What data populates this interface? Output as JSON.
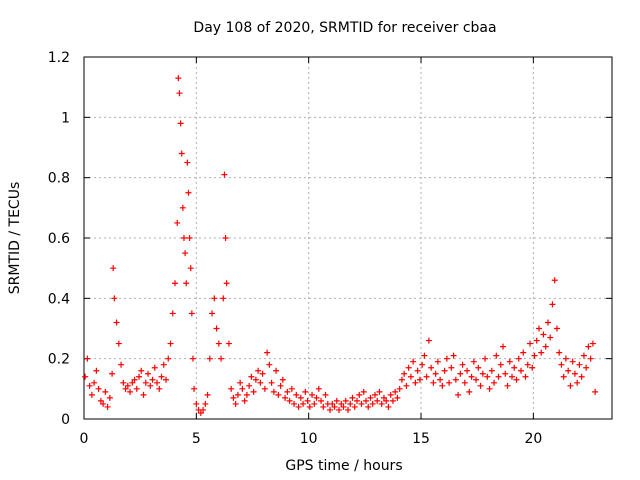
{
  "chart_data": {
    "type": "scatter",
    "title": "Day 108 of 2020, SRMTID for receiver cbaa",
    "xlabel": "GPS time / hours",
    "ylabel": "SRMTID / TECUs",
    "xlim": [
      0,
      23.5
    ],
    "ylim": [
      0,
      1.2
    ],
    "xticks": [
      0,
      5,
      10,
      15,
      20
    ],
    "xtick_labels": [
      "0",
      "5",
      "10",
      "15",
      "20"
    ],
    "yticks": [
      0,
      0.2,
      0.4,
      0.6,
      0.8,
      1.0,
      1.2
    ],
    "ytick_labels": [
      "0",
      "0.2",
      "0.4",
      "0.6",
      "0.8",
      "1",
      "1.2"
    ],
    "grid": true,
    "marker": "plus",
    "color": "#ff0000",
    "series": [
      {
        "name": "SRMTID",
        "points": [
          [
            0.05,
            0.14
          ],
          [
            0.15,
            0.2
          ],
          [
            0.25,
            0.11
          ],
          [
            0.35,
            0.08
          ],
          [
            0.45,
            0.12
          ],
          [
            0.55,
            0.16
          ],
          [
            0.65,
            0.1
          ],
          [
            0.75,
            0.06
          ],
          [
            0.85,
            0.05
          ],
          [
            0.95,
            0.09
          ],
          [
            1.05,
            0.04
          ],
          [
            1.15,
            0.07
          ],
          [
            1.25,
            0.15
          ],
          [
            1.3,
            0.5
          ],
          [
            1.35,
            0.4
          ],
          [
            1.45,
            0.32
          ],
          [
            1.55,
            0.25
          ],
          [
            1.65,
            0.18
          ],
          [
            1.75,
            0.12
          ],
          [
            1.85,
            0.1
          ],
          [
            1.95,
            0.11
          ],
          [
            2.05,
            0.09
          ],
          [
            2.15,
            0.12
          ],
          [
            2.25,
            0.13
          ],
          [
            2.35,
            0.1
          ],
          [
            2.45,
            0.14
          ],
          [
            2.55,
            0.16
          ],
          [
            2.65,
            0.08
          ],
          [
            2.75,
            0.12
          ],
          [
            2.85,
            0.15
          ],
          [
            2.95,
            0.11
          ],
          [
            3.05,
            0.13
          ],
          [
            3.15,
            0.17
          ],
          [
            3.25,
            0.12
          ],
          [
            3.35,
            0.1
          ],
          [
            3.45,
            0.14
          ],
          [
            3.55,
            0.18
          ],
          [
            3.65,
            0.13
          ],
          [
            3.75,
            0.2
          ],
          [
            3.85,
            0.25
          ],
          [
            3.95,
            0.35
          ],
          [
            4.05,
            0.45
          ],
          [
            4.15,
            0.65
          ],
          [
            4.2,
            1.13
          ],
          [
            4.25,
            1.08
          ],
          [
            4.3,
            0.98
          ],
          [
            4.35,
            0.88
          ],
          [
            4.4,
            0.7
          ],
          [
            4.45,
            0.6
          ],
          [
            4.5,
            0.55
          ],
          [
            4.55,
            0.45
          ],
          [
            4.6,
            0.85
          ],
          [
            4.65,
            0.75
          ],
          [
            4.7,
            0.6
          ],
          [
            4.75,
            0.5
          ],
          [
            4.8,
            0.35
          ],
          [
            4.85,
            0.2
          ],
          [
            4.9,
            0.1
          ],
          [
            5.0,
            0.05
          ],
          [
            5.1,
            0.03
          ],
          [
            5.2,
            0.02
          ],
          [
            5.3,
            0.03
          ],
          [
            5.4,
            0.05
          ],
          [
            5.5,
            0.08
          ],
          [
            5.6,
            0.2
          ],
          [
            5.7,
            0.35
          ],
          [
            5.8,
            0.4
          ],
          [
            5.9,
            0.3
          ],
          [
            6.0,
            0.25
          ],
          [
            6.1,
            0.2
          ],
          [
            6.2,
            0.4
          ],
          [
            6.25,
            0.81
          ],
          [
            6.3,
            0.6
          ],
          [
            6.35,
            0.45
          ],
          [
            6.45,
            0.25
          ],
          [
            6.55,
            0.1
          ],
          [
            6.65,
            0.07
          ],
          [
            6.75,
            0.05
          ],
          [
            6.85,
            0.08
          ],
          [
            6.95,
            0.12
          ],
          [
            7.05,
            0.1
          ],
          [
            7.15,
            0.06
          ],
          [
            7.25,
            0.08
          ],
          [
            7.35,
            0.11
          ],
          [
            7.45,
            0.14
          ],
          [
            7.55,
            0.09
          ],
          [
            7.65,
            0.13
          ],
          [
            7.75,
            0.16
          ],
          [
            7.85,
            0.12
          ],
          [
            7.95,
            0.15
          ],
          [
            8.05,
            0.1
          ],
          [
            8.15,
            0.22
          ],
          [
            8.25,
            0.18
          ],
          [
            8.35,
            0.12
          ],
          [
            8.45,
            0.09
          ],
          [
            8.55,
            0.16
          ],
          [
            8.65,
            0.08
          ],
          [
            8.75,
            0.11
          ],
          [
            8.85,
            0.13
          ],
          [
            8.95,
            0.07
          ],
          [
            9.05,
            0.09
          ],
          [
            9.15,
            0.06
          ],
          [
            9.25,
            0.1
          ],
          [
            9.35,
            0.05
          ],
          [
            9.45,
            0.08
          ],
          [
            9.55,
            0.04
          ],
          [
            9.65,
            0.07
          ],
          [
            9.75,
            0.05
          ],
          [
            9.85,
            0.09
          ],
          [
            9.95,
            0.06
          ],
          [
            10.05,
            0.04
          ],
          [
            10.15,
            0.08
          ],
          [
            10.25,
            0.05
          ],
          [
            10.35,
            0.07
          ],
          [
            10.45,
            0.1
          ],
          [
            10.55,
            0.06
          ],
          [
            10.65,
            0.04
          ],
          [
            10.75,
            0.08
          ],
          [
            10.85,
            0.05
          ],
          [
            10.95,
            0.03
          ],
          [
            11.05,
            0.05
          ],
          [
            11.15,
            0.04
          ],
          [
            11.25,
            0.06
          ],
          [
            11.35,
            0.03
          ],
          [
            11.45,
            0.05
          ],
          [
            11.55,
            0.04
          ],
          [
            11.65,
            0.06
          ],
          [
            11.75,
            0.03
          ],
          [
            11.85,
            0.05
          ],
          [
            11.95,
            0.07
          ],
          [
            12.05,
            0.04
          ],
          [
            12.15,
            0.06
          ],
          [
            12.25,
            0.08
          ],
          [
            12.35,
            0.05
          ],
          [
            12.45,
            0.09
          ],
          [
            12.55,
            0.06
          ],
          [
            12.65,
            0.04
          ],
          [
            12.75,
            0.07
          ],
          [
            12.85,
            0.05
          ],
          [
            12.95,
            0.08
          ],
          [
            13.05,
            0.06
          ],
          [
            13.15,
            0.09
          ],
          [
            13.25,
            0.05
          ],
          [
            13.35,
            0.07
          ],
          [
            13.45,
            0.06
          ],
          [
            13.55,
            0.04
          ],
          [
            13.65,
            0.08
          ],
          [
            13.75,
            0.06
          ],
          [
            13.85,
            0.09
          ],
          [
            13.95,
            0.07
          ],
          [
            14.05,
            0.1
          ],
          [
            14.15,
            0.13
          ],
          [
            14.25,
            0.15
          ],
          [
            14.35,
            0.11
          ],
          [
            14.45,
            0.17
          ],
          [
            14.55,
            0.14
          ],
          [
            14.65,
            0.19
          ],
          [
            14.75,
            0.12
          ],
          [
            14.85,
            0.16
          ],
          [
            14.95,
            0.13
          ],
          [
            15.05,
            0.18
          ],
          [
            15.15,
            0.21
          ],
          [
            15.25,
            0.14
          ],
          [
            15.35,
            0.26
          ],
          [
            15.45,
            0.17
          ],
          [
            15.55,
            0.12
          ],
          [
            15.65,
            0.15
          ],
          [
            15.75,
            0.19
          ],
          [
            15.85,
            0.13
          ],
          [
            15.95,
            0.11
          ],
          [
            16.05,
            0.16
          ],
          [
            16.15,
            0.2
          ],
          [
            16.25,
            0.12
          ],
          [
            16.35,
            0.17
          ],
          [
            16.45,
            0.21
          ],
          [
            16.55,
            0.13
          ],
          [
            16.65,
            0.08
          ],
          [
            16.75,
            0.15
          ],
          [
            16.85,
            0.18
          ],
          [
            16.95,
            0.12
          ],
          [
            17.05,
            0.16
          ],
          [
            17.15,
            0.09
          ],
          [
            17.25,
            0.14
          ],
          [
            17.35,
            0.19
          ],
          [
            17.45,
            0.13
          ],
          [
            17.55,
            0.17
          ],
          [
            17.65,
            0.11
          ],
          [
            17.75,
            0.15
          ],
          [
            17.85,
            0.2
          ],
          [
            17.95,
            0.14
          ],
          [
            18.05,
            0.1
          ],
          [
            18.15,
            0.16
          ],
          [
            18.25,
            0.12
          ],
          [
            18.35,
            0.21
          ],
          [
            18.45,
            0.14
          ],
          [
            18.55,
            0.18
          ],
          [
            18.65,
            0.24
          ],
          [
            18.75,
            0.15
          ],
          [
            18.85,
            0.11
          ],
          [
            18.95,
            0.19
          ],
          [
            19.05,
            0.14
          ],
          [
            19.15,
            0.17
          ],
          [
            19.25,
            0.13
          ],
          [
            19.35,
            0.2
          ],
          [
            19.45,
            0.16
          ],
          [
            19.55,
            0.22
          ],
          [
            19.65,
            0.14
          ],
          [
            19.75,
            0.18
          ],
          [
            19.85,
            0.25
          ],
          [
            19.95,
            0.17
          ],
          [
            20.05,
            0.21
          ],
          [
            20.15,
            0.26
          ],
          [
            20.25,
            0.3
          ],
          [
            20.35,
            0.22
          ],
          [
            20.45,
            0.28
          ],
          [
            20.55,
            0.24
          ],
          [
            20.65,
            0.32
          ],
          [
            20.75,
            0.27
          ],
          [
            20.85,
            0.38
          ],
          [
            20.95,
            0.46
          ],
          [
            21.05,
            0.3
          ],
          [
            21.15,
            0.22
          ],
          [
            21.25,
            0.18
          ],
          [
            21.35,
            0.14
          ],
          [
            21.45,
            0.2
          ],
          [
            21.55,
            0.16
          ],
          [
            21.65,
            0.11
          ],
          [
            21.75,
            0.19
          ],
          [
            21.85,
            0.15
          ],
          [
            21.95,
            0.12
          ],
          [
            22.05,
            0.18
          ],
          [
            22.15,
            0.14
          ],
          [
            22.25,
            0.21
          ],
          [
            22.35,
            0.17
          ],
          [
            22.45,
            0.24
          ],
          [
            22.55,
            0.2
          ],
          [
            22.65,
            0.25
          ],
          [
            22.75,
            0.09
          ]
        ]
      }
    ]
  }
}
